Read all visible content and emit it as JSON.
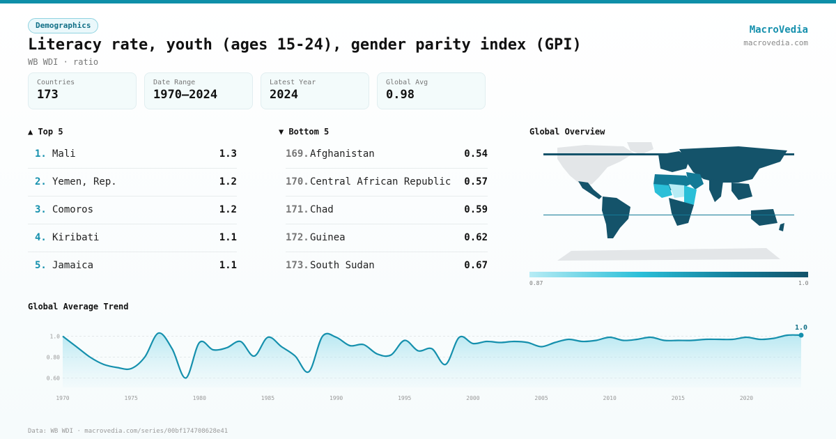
{
  "header": {
    "badge": "Demographics",
    "title": "Literacy rate, youth (ages 15-24), gender parity index (GPI)",
    "subtitle": "WB WDI · ratio",
    "brand": "MacroVedia",
    "brand_url": "macrovedia.com"
  },
  "stats": [
    {
      "label": "Countries",
      "value": "173"
    },
    {
      "label": "Date Range",
      "value": "1970–2024"
    },
    {
      "label": "Latest Year",
      "value": "2024"
    },
    {
      "label": "Global Avg",
      "value": "0.98"
    }
  ],
  "top5": {
    "heading": "▲ Top 5",
    "items": [
      {
        "rank": "1.",
        "name": "Mali",
        "value": "1.3"
      },
      {
        "rank": "2.",
        "name": "Yemen, Rep.",
        "value": "1.2"
      },
      {
        "rank": "3.",
        "name": "Comoros",
        "value": "1.2"
      },
      {
        "rank": "4.",
        "name": "Kiribati",
        "value": "1.1"
      },
      {
        "rank": "5.",
        "name": "Jamaica",
        "value": "1.1"
      }
    ]
  },
  "bottom5": {
    "heading": "▼ Bottom 5",
    "items": [
      {
        "rank": "169.",
        "name": "Afghanistan",
        "value": "0.54"
      },
      {
        "rank": "170.",
        "name": "Central African Republic",
        "value": "0.57"
      },
      {
        "rank": "171.",
        "name": "Chad",
        "value": "0.59"
      },
      {
        "rank": "172.",
        "name": "Guinea",
        "value": "0.62"
      },
      {
        "rank": "173.",
        "name": "South Sudan",
        "value": "0.67"
      }
    ]
  },
  "map": {
    "heading": "Global Overview",
    "legend_min": "0.87",
    "legend_max": "1.0",
    "colors": {
      "no_data": "#e3e6e8",
      "low": "#b7ecf5",
      "mid": "#2bbfd8",
      "high": "#14536a"
    }
  },
  "trend_heading": "Global Average Trend",
  "footer": "Data: WB WDI · macrovedia.com/series/00bf174708628e41",
  "colors": {
    "accent": "#1590ad",
    "line": "#1590ad"
  },
  "chart_data": {
    "type": "area",
    "title": "Global Average Trend",
    "x": [
      1970,
      1971,
      1972,
      1973,
      1974,
      1975,
      1976,
      1977,
      1978,
      1979,
      1980,
      1981,
      1982,
      1983,
      1984,
      1985,
      1986,
      1987,
      1988,
      1989,
      1990,
      1991,
      1992,
      1993,
      1994,
      1995,
      1996,
      1997,
      1998,
      1999,
      2000,
      2001,
      2002,
      2003,
      2004,
      2005,
      2006,
      2007,
      2008,
      2009,
      2010,
      2011,
      2012,
      2013,
      2014,
      2015,
      2016,
      2017,
      2018,
      2019,
      2020,
      2021,
      2022,
      2023,
      2024
    ],
    "values": [
      1.0,
      0.9,
      0.8,
      0.73,
      0.7,
      0.69,
      0.8,
      1.03,
      0.88,
      0.6,
      0.94,
      0.87,
      0.89,
      0.95,
      0.81,
      0.99,
      0.9,
      0.81,
      0.66,
      1.0,
      0.99,
      0.91,
      0.92,
      0.83,
      0.82,
      0.96,
      0.86,
      0.88,
      0.73,
      0.99,
      0.93,
      0.95,
      0.94,
      0.95,
      0.94,
      0.9,
      0.94,
      0.97,
      0.95,
      0.96,
      0.99,
      0.96,
      0.97,
      0.99,
      0.96,
      0.96,
      0.96,
      0.97,
      0.97,
      0.97,
      0.99,
      0.97,
      0.98,
      1.01,
      1.01
    ],
    "yticks": [
      0.6,
      0.8,
      1.0
    ],
    "ytick_labels": [
      "0.60",
      "0.80",
      "1.0"
    ],
    "xticks": [
      1970,
      1975,
      1980,
      1985,
      1990,
      1995,
      2000,
      2005,
      2010,
      2015,
      2020
    ],
    "ylim": [
      0.6,
      1.0
    ],
    "last_label": "1.0",
    "grid": true
  }
}
